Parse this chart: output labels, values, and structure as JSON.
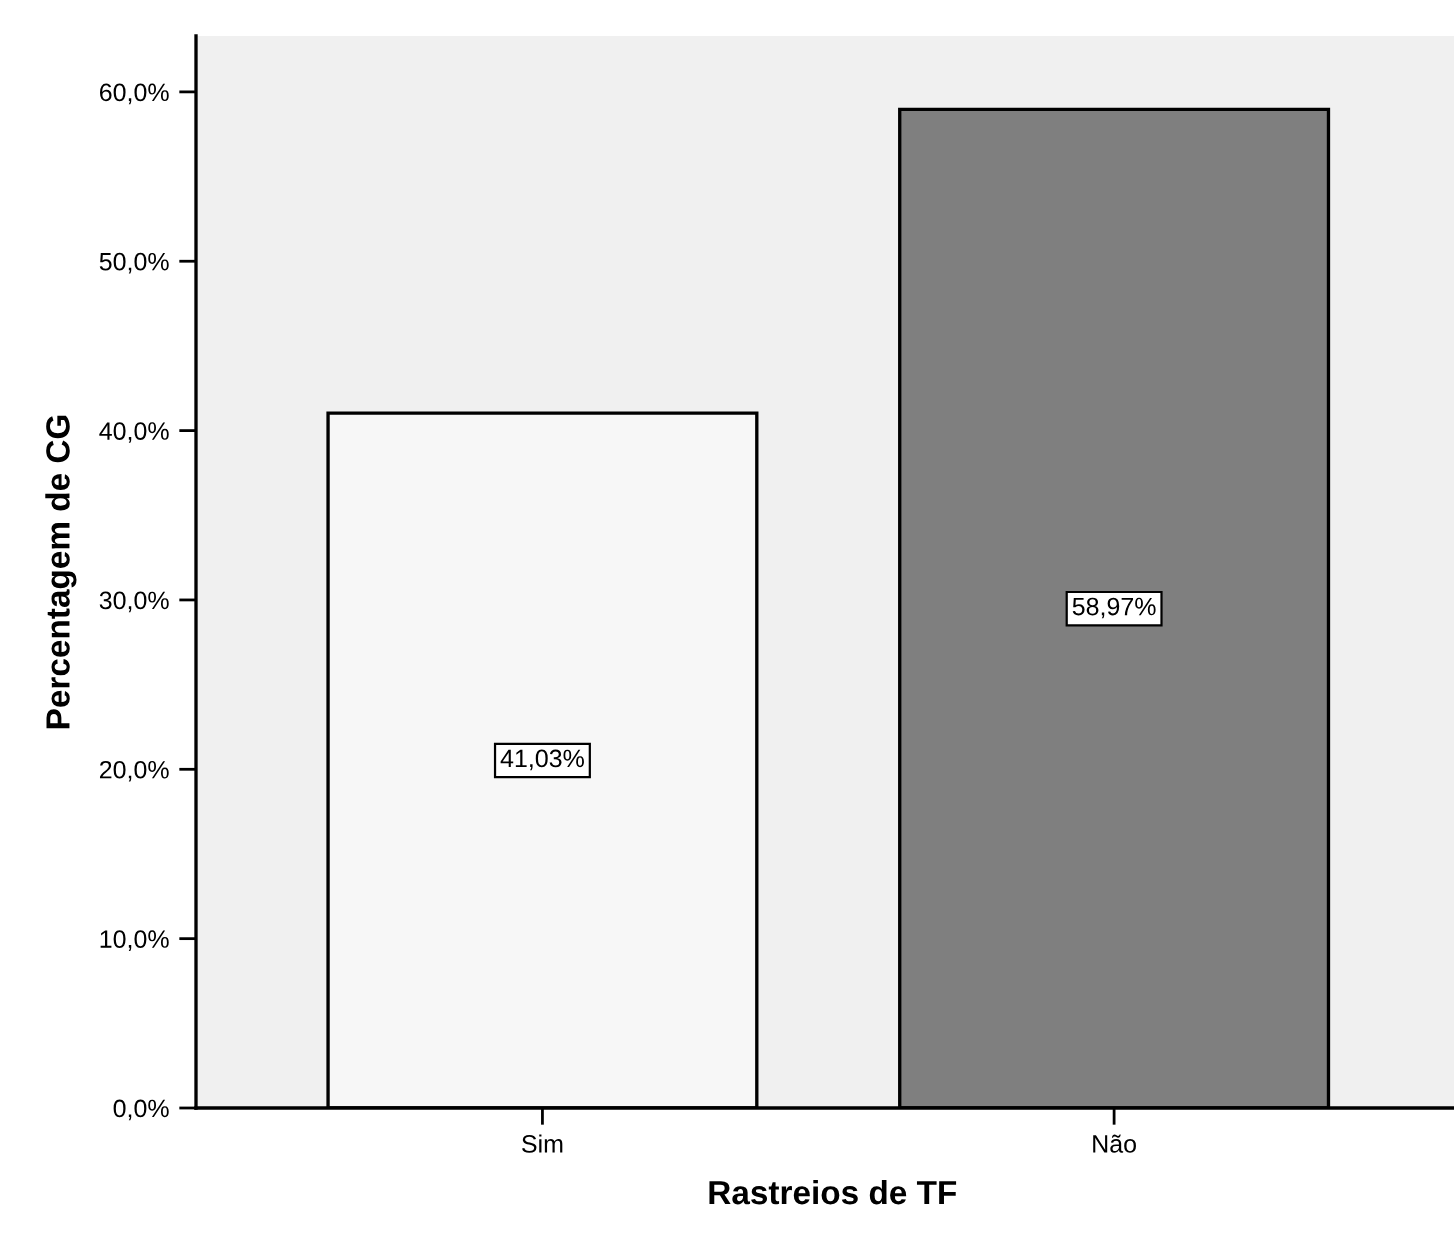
{
  "chart_data": {
    "type": "bar",
    "xlabel": "Rastreios de TF",
    "ylabel": "Percentagem de CG",
    "categories": [
      "Sim",
      "Não"
    ],
    "values": [
      41.03,
      58.97
    ],
    "colors": [
      "#f7f7f7",
      "#7f7f7f"
    ],
    "value_labels": [
      "41,03%",
      "58,97%"
    ],
    "ylim": [
      0,
      63.3
    ],
    "yticks": [
      {
        "value": 0,
        "label": "0,0%"
      },
      {
        "value": 10,
        "label": "10,0%"
      },
      {
        "value": 20,
        "label": "20,0%"
      },
      {
        "value": 30,
        "label": "30,0%"
      },
      {
        "value": 40,
        "label": "40,0%"
      },
      {
        "value": 50,
        "label": "50,0%"
      },
      {
        "value": 60,
        "label": "60,0%"
      }
    ],
    "grid": false,
    "legend": false
  }
}
